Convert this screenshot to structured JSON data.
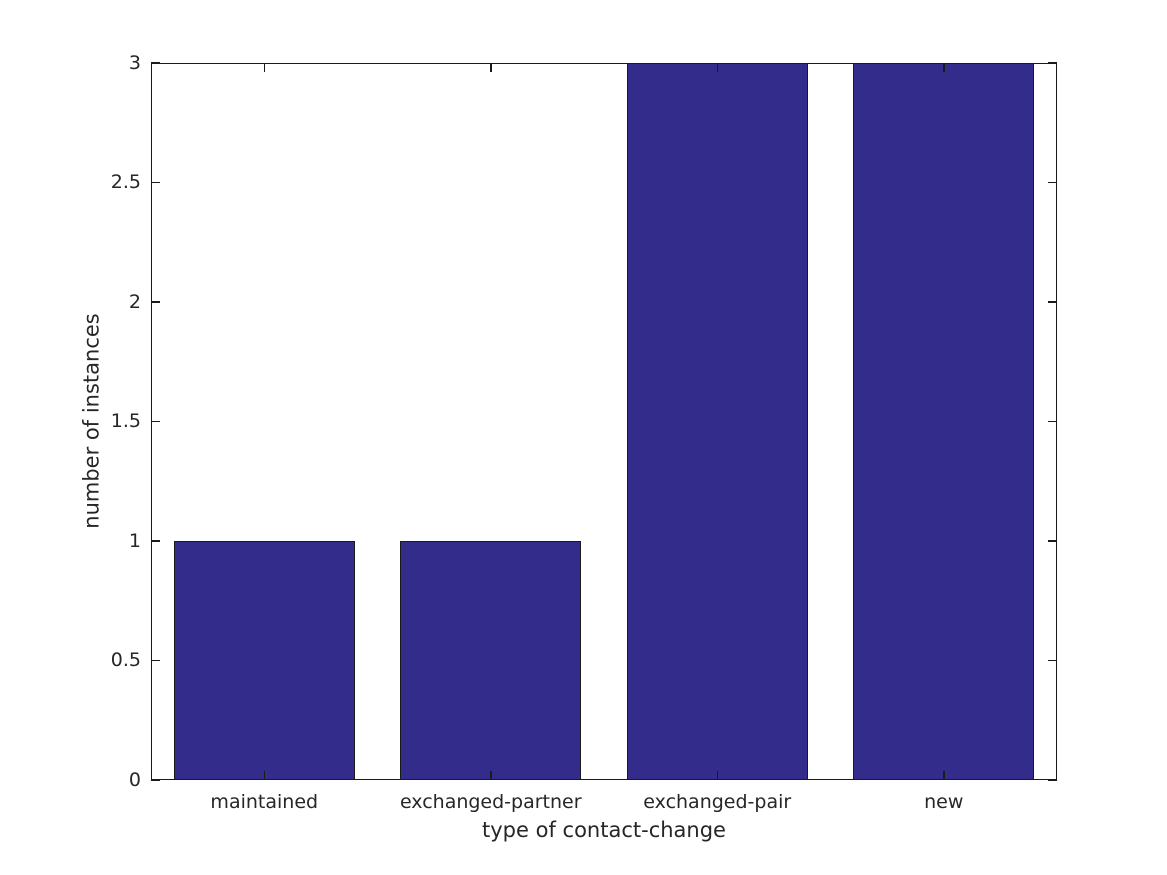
{
  "figure": {
    "background": "#ffffff"
  },
  "chart_data": {
    "type": "bar",
    "categories": [
      "maintained",
      "exchanged-partner",
      "exchanged-pair",
      "new"
    ],
    "values": [
      1,
      1,
      3,
      3
    ],
    "title": "",
    "xlabel": "type of contact-change",
    "ylabel": "number of instances",
    "ylim": [
      0,
      3
    ],
    "yticks": [
      0,
      0.5,
      1,
      1.5,
      2,
      2.5,
      3
    ],
    "ytick_labels": [
      "0",
      "0.5",
      "1",
      "1.5",
      "2",
      "2.5",
      "3"
    ],
    "bar_width_fraction": 0.8,
    "bar_color": "#342c8a",
    "bar_edge_color": "#1a1a1a",
    "axis_color": "#1a1a1a",
    "text_color": "#262626",
    "grid": false,
    "legend": null,
    "tick_direction": "in",
    "ticks_mirrored": true
  }
}
